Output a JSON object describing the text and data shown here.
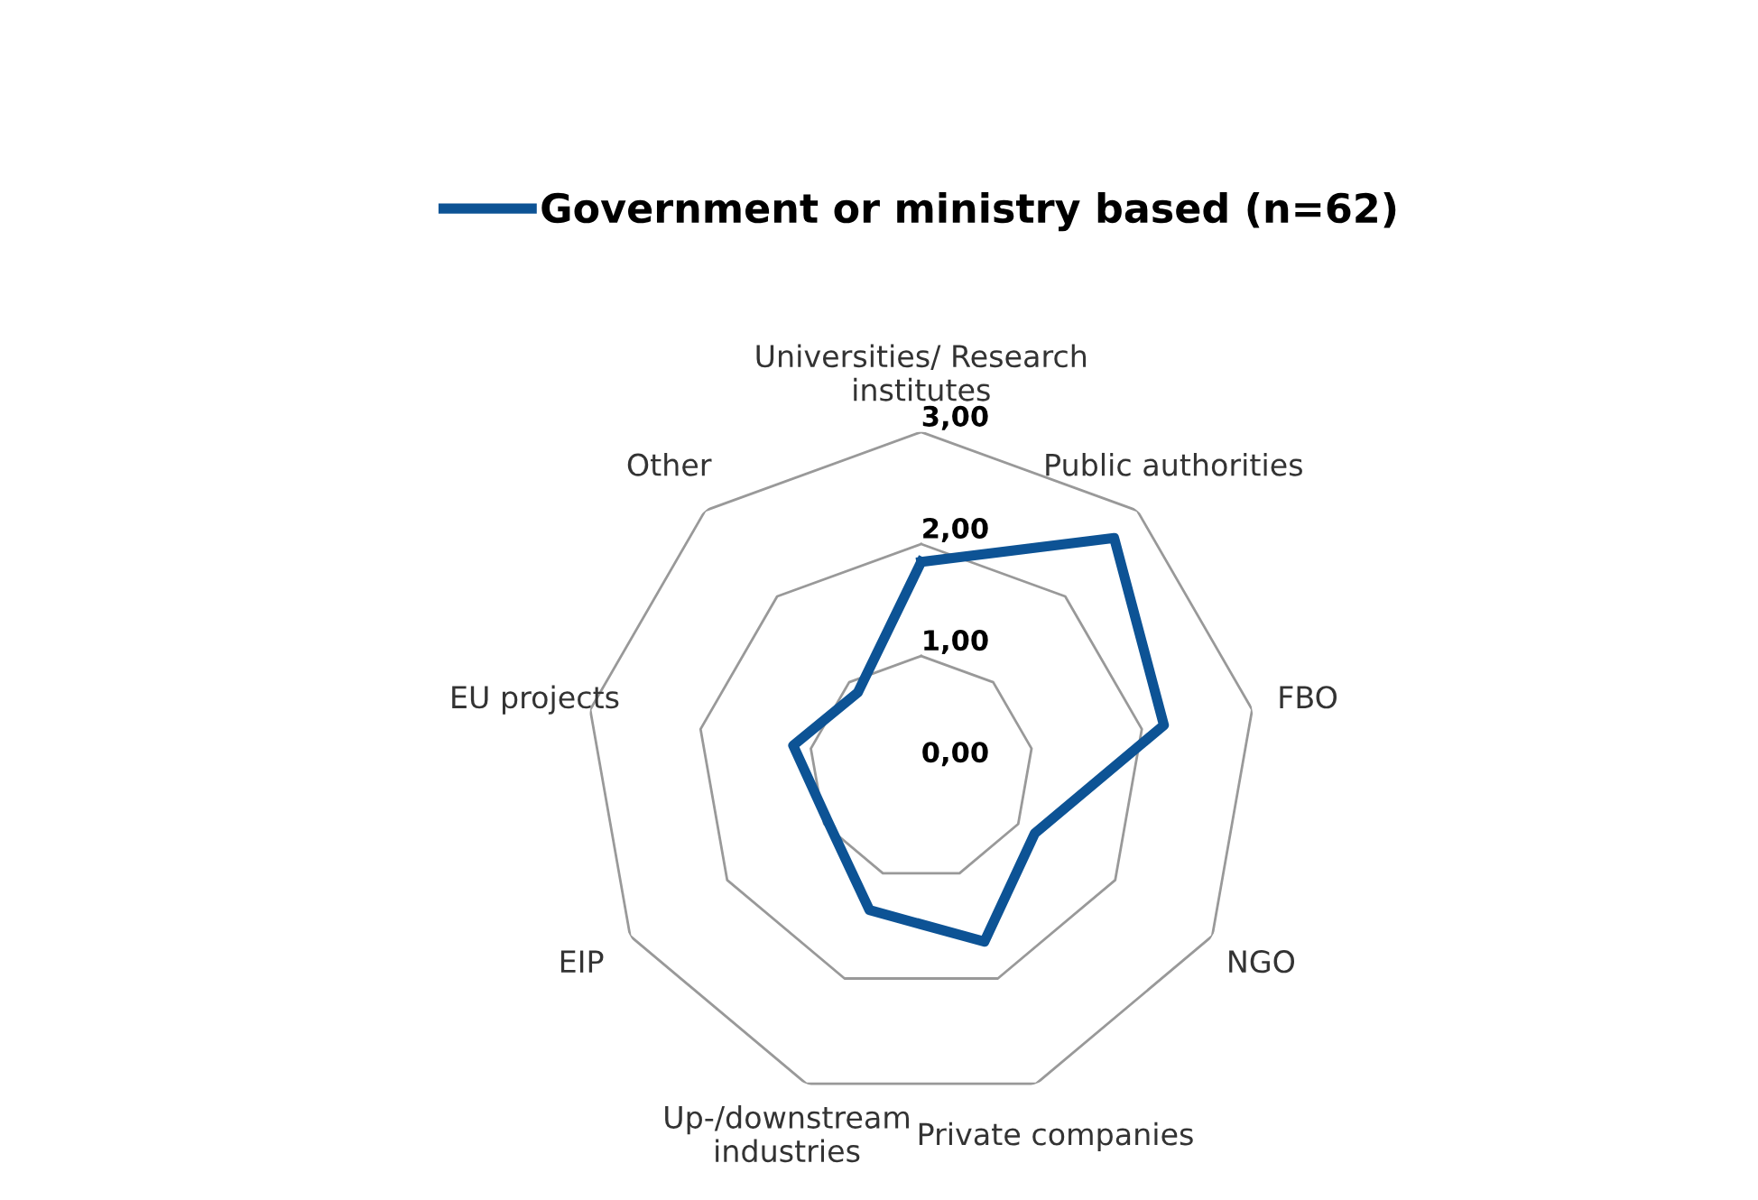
{
  "chart_data": {
    "type": "radar",
    "categories": [
      "Universities/ Research\ninstitutes",
      "Public authorities",
      "FBO",
      "NGO",
      "Private companies",
      "Up-/downstream\nindustries",
      "EIP",
      "EU projects",
      "Other"
    ],
    "series": [
      {
        "name": "Government or ministry based (n=62)",
        "color": "#0d5395",
        "values": [
          1.84,
          2.68,
          2.2,
          1.17,
          1.65,
          1.35,
          0.96,
          1.16,
          0.88
        ]
      }
    ],
    "ylim": [
      0,
      3
    ],
    "yticks": [
      {
        "value": 0,
        "label": "0,00"
      },
      {
        "value": 1,
        "label": "1,00"
      },
      {
        "value": 2,
        "label": "2,00"
      },
      {
        "value": 3,
        "label": "3,00"
      }
    ],
    "grid": true,
    "legend": "top",
    "marker": "none",
    "line_style": "solid"
  }
}
